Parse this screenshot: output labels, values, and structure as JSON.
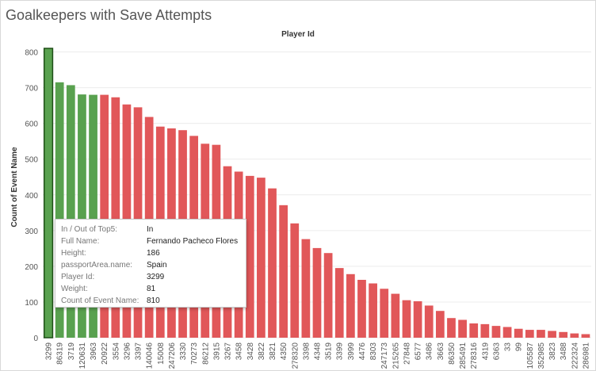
{
  "title": "Goalkeepers with Save Attempts",
  "colors": {
    "in": "#59a14f",
    "out": "#e15759",
    "highlight_stroke": "#1f4f18"
  },
  "tooltip": {
    "rows": [
      {
        "key": "In / Out of Top5:",
        "value": "In"
      },
      {
        "key": "Full Name:",
        "value": "Fernando Pacheco Flores"
      },
      {
        "key": "Height:",
        "value": "186"
      },
      {
        "key": "passportArea.name:",
        "value": "Spain"
      },
      {
        "key": "Player Id:",
        "value": "3299"
      },
      {
        "key": "Weight:",
        "value": "81"
      },
      {
        "key": "Count of Event Name:",
        "value": "810"
      }
    ]
  },
  "chart_data": {
    "type": "bar",
    "title": "Goalkeepers with Save Attempts",
    "xlabel": "Player Id",
    "ylabel": "Count of Event Name",
    "ylim": [
      0,
      830
    ],
    "yticks": [
      0,
      100,
      200,
      300,
      400,
      500,
      600,
      700,
      800
    ],
    "grid": true,
    "categories": [
      "3299",
      "86319",
      "3719",
      "120631",
      "3963",
      "20922",
      "3554",
      "3296",
      "3397",
      "140046",
      "15008",
      "247206",
      "3330",
      "70273",
      "86212",
      "3915",
      "3267",
      "3458",
      "3428",
      "3822",
      "3821",
      "4350",
      "278320",
      "3398",
      "4348",
      "3519",
      "3399",
      "3999",
      "4476",
      "8303",
      "247173",
      "215265",
      "27848",
      "6577",
      "3486",
      "3663",
      "86350",
      "285491",
      "278316",
      "4319",
      "6363",
      "33",
      "99",
      "105587",
      "352985",
      "3823",
      "3488",
      "222324",
      "286981"
    ],
    "values": [
      810,
      715,
      707,
      681,
      680,
      680,
      673,
      653,
      645,
      618,
      591,
      586,
      581,
      565,
      543,
      540,
      480,
      465,
      453,
      448,
      418,
      371,
      320,
      276,
      251,
      237,
      195,
      178,
      162,
      152,
      137,
      123,
      105,
      102,
      90,
      75,
      55,
      50,
      40,
      38,
      33,
      30,
      25,
      22,
      22,
      19,
      16,
      12,
      10
    ],
    "series_status": [
      "In",
      "In",
      "In",
      "In",
      "In",
      "Out",
      "Out",
      "Out",
      "Out",
      "Out",
      "Out",
      "Out",
      "Out",
      "Out",
      "Out",
      "Out",
      "Out",
      "Out",
      "Out",
      "Out",
      "Out",
      "Out",
      "Out",
      "Out",
      "Out",
      "Out",
      "Out",
      "Out",
      "Out",
      "Out",
      "Out",
      "Out",
      "Out",
      "Out",
      "Out",
      "Out",
      "Out",
      "Out",
      "Out",
      "Out",
      "Out",
      "Out",
      "Out",
      "Out",
      "Out",
      "Out",
      "Out",
      "Out",
      "Out"
    ],
    "highlighted": "3299"
  }
}
